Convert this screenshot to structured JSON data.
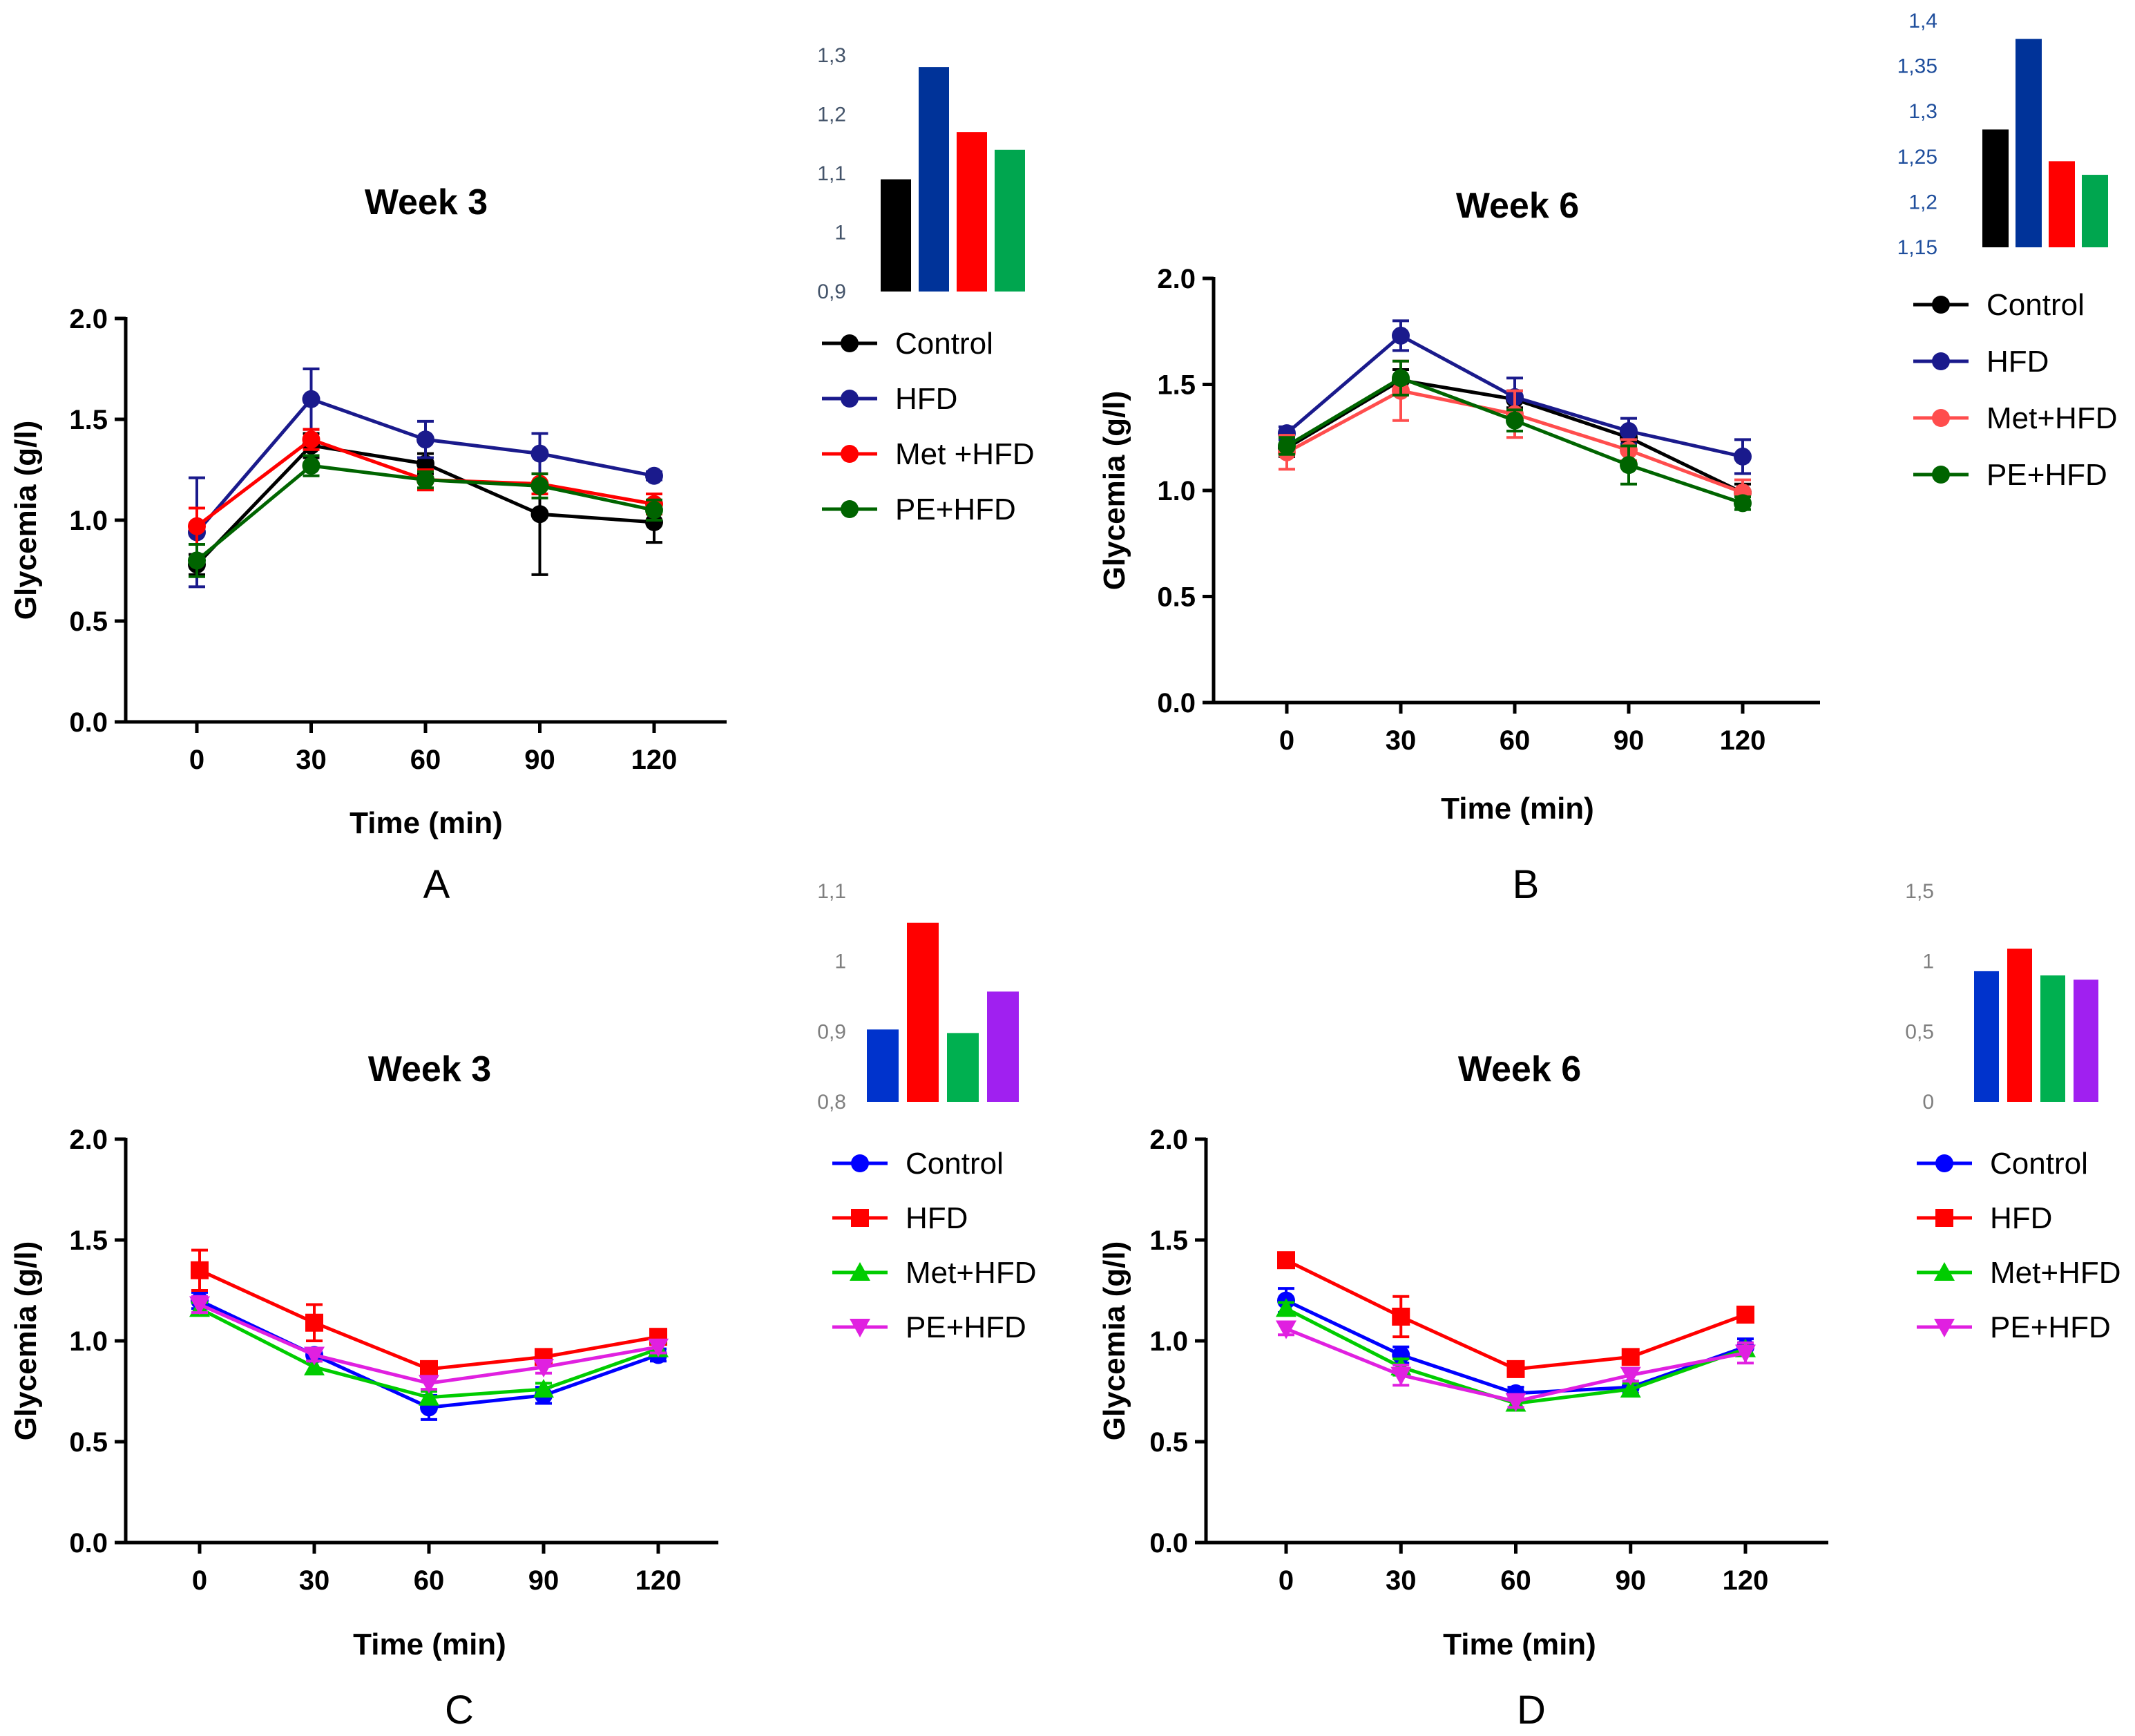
{
  "chart_data": [
    {
      "id": "A",
      "type": "line",
      "panel_label": "A",
      "title": "Week 3",
      "xlabel": "Time (min)",
      "ylabel": "Glycemia (g/l)",
      "x": [
        0,
        30,
        60,
        90,
        120
      ],
      "x_tick_labels": [
        "0",
        "30",
        "60",
        "90",
        "120"
      ],
      "ylim": [
        0,
        2
      ],
      "y_ticks": [
        0,
        0.5,
        1,
        1.5,
        2
      ],
      "y_tick_labels": [
        "0.0",
        "0.5",
        "1.0",
        "1.5",
        "2.0"
      ],
      "series": [
        {
          "name": "Control",
          "color": "#000000",
          "marker": "circle",
          "values": [
            0.78,
            1.37,
            1.28,
            1.03,
            0.99
          ],
          "errors": [
            0.05,
            0.06,
            0.05,
            0.3,
            0.1
          ]
        },
        {
          "name": "HFD",
          "color": "#1a1a8c",
          "marker": "circle",
          "values": [
            0.94,
            1.6,
            1.4,
            1.33,
            1.22
          ],
          "errors": [
            0.27,
            0.15,
            0.09,
            0.1,
            0.02
          ]
        },
        {
          "name": "Met +HFD",
          "color": "#ff0000",
          "marker": "circle",
          "values": [
            0.97,
            1.4,
            1.2,
            1.18,
            1.08
          ],
          "errors": [
            0.09,
            0.05,
            0.05,
            0.05,
            0.05
          ]
        },
        {
          "name": "PE+HFD",
          "color": "#006400",
          "marker": "circle",
          "values": [
            0.8,
            1.27,
            1.2,
            1.17,
            1.05
          ],
          "errors": [
            0.08,
            0.05,
            0.04,
            0.06,
            0.05
          ]
        }
      ],
      "inset": {
        "type": "bar",
        "tick_color": "#44546a",
        "tick_labels": [
          "0,9",
          "1",
          "1,1",
          "1,2",
          "1,3"
        ],
        "ylim": [
          0.9,
          1.3
        ],
        "values": [
          1.09,
          1.28,
          1.17,
          1.14
        ],
        "colors": [
          "#000000",
          "#003399",
          "#ff0000",
          "#00a64f"
        ]
      }
    },
    {
      "id": "B",
      "type": "line",
      "panel_label": "B",
      "title": "Week 6",
      "xlabel": "Time (min)",
      "ylabel": "Glycemia (g/l)",
      "x": [
        0,
        30,
        60,
        90,
        120
      ],
      "x_tick_labels": [
        "0",
        "30",
        "60",
        "90",
        "120"
      ],
      "ylim": [
        0,
        2
      ],
      "y_ticks": [
        0,
        0.5,
        1,
        1.5,
        2
      ],
      "y_tick_labels": [
        "0.0",
        "0.5",
        "1.0",
        "1.5",
        "2.0"
      ],
      "series": [
        {
          "name": "Control",
          "color": "#000000",
          "marker": "circle",
          "values": [
            1.2,
            1.52,
            1.43,
            1.25,
            0.99
          ],
          "errors": [
            0.04,
            0.05,
            0.04,
            0.04,
            0.04
          ]
        },
        {
          "name": "HFD",
          "color": "#1a1a8c",
          "marker": "circle",
          "values": [
            1.27,
            1.73,
            1.44,
            1.28,
            1.16
          ],
          "errors": [
            0.03,
            0.07,
            0.09,
            0.06,
            0.08
          ]
        },
        {
          "name": "Met+HFD",
          "color": "#ff4d4d",
          "marker": "circle",
          "values": [
            1.18,
            1.47,
            1.36,
            1.19,
            0.99
          ],
          "errors": [
            0.08,
            0.14,
            0.11,
            0.05,
            0.06
          ]
        },
        {
          "name": "PE+HFD",
          "color": "#006400",
          "marker": "circle",
          "values": [
            1.21,
            1.53,
            1.33,
            1.12,
            0.94
          ],
          "errors": [
            0.04,
            0.08,
            0.05,
            0.09,
            0.03
          ]
        }
      ],
      "inset": {
        "type": "bar",
        "tick_color": "#1f4e9c",
        "tick_labels": [
          "1,15",
          "1,2",
          "1,25",
          "1,3",
          "1,35",
          "1,4"
        ],
        "ylim": [
          1.15,
          1.4
        ],
        "values": [
          1.28,
          1.38,
          1.245,
          1.23
        ],
        "colors": [
          "#000000",
          "#003399",
          "#ff0000",
          "#00a64f"
        ]
      }
    },
    {
      "id": "C",
      "type": "line",
      "panel_label": "C",
      "title": "Week 3",
      "xlabel": "Time (min)",
      "ylabel": "Glycemia (g/l)",
      "x": [
        0,
        30,
        60,
        90,
        120
      ],
      "x_tick_labels": [
        "0",
        "30",
        "60",
        "90",
        "120"
      ],
      "ylim": [
        0,
        2
      ],
      "y_ticks": [
        0,
        0.5,
        1,
        1.5,
        2
      ],
      "y_tick_labels": [
        "0.0",
        "0.5",
        "1.0",
        "1.5",
        "2.0"
      ],
      "series": [
        {
          "name": "Control",
          "color": "#0000ff",
          "marker": "circle",
          "values": [
            1.2,
            0.93,
            0.67,
            0.73,
            0.93
          ],
          "errors": [
            0.04,
            0.03,
            0.06,
            0.04,
            0.03
          ]
        },
        {
          "name": "HFD",
          "color": "#ff0000",
          "marker": "square",
          "values": [
            1.35,
            1.09,
            0.86,
            0.92,
            1.02
          ],
          "errors": [
            0.1,
            0.09,
            0.03,
            0.03,
            0.02
          ]
        },
        {
          "name": "Met+HFD",
          "color": "#00cc00",
          "marker": "triangle-up",
          "values": [
            1.16,
            0.87,
            0.72,
            0.76,
            0.96
          ],
          "errors": [
            0.03,
            0.03,
            0.03,
            0.03,
            0.03
          ]
        },
        {
          "name": "PE+HFD",
          "color": "#e020e0",
          "marker": "triangle-down",
          "values": [
            1.18,
            0.93,
            0.79,
            0.87,
            0.97
          ],
          "errors": [
            0.04,
            0.03,
            0.03,
            0.03,
            0.03
          ]
        }
      ],
      "inset": {
        "type": "bar",
        "tick_color": "#7f7f7f",
        "tick_labels": [
          "0,8",
          "0,9",
          "1",
          "1,1"
        ],
        "ylim": [
          0.8,
          1.1
        ],
        "values": [
          0.903,
          1.055,
          0.898,
          0.957
        ],
        "colors": [
          "#0033cc",
          "#ff0000",
          "#00b050",
          "#a020f0"
        ]
      }
    },
    {
      "id": "D",
      "type": "line",
      "panel_label": "D",
      "title": "Week 6",
      "xlabel": "Time (min)",
      "ylabel": "Glycemia (g/l)",
      "x": [
        0,
        30,
        60,
        90,
        120
      ],
      "x_tick_labels": [
        "0",
        "30",
        "60",
        "90",
        "120"
      ],
      "ylim": [
        0,
        2
      ],
      "y_ticks": [
        0,
        0.5,
        1,
        1.5,
        2
      ],
      "y_tick_labels": [
        "0.0",
        "0.5",
        "1.0",
        "1.5",
        "2.0"
      ],
      "series": [
        {
          "name": "Control",
          "color": "#0000ff",
          "marker": "circle",
          "values": [
            1.2,
            0.93,
            0.74,
            0.77,
            0.97
          ],
          "errors": [
            0.06,
            0.04,
            0.03,
            0.03,
            0.04
          ]
        },
        {
          "name": "HFD",
          "color": "#ff0000",
          "marker": "square",
          "values": [
            1.4,
            1.12,
            0.86,
            0.92,
            1.13
          ],
          "errors": [
            0.03,
            0.1,
            0.03,
            0.03,
            0.03
          ]
        },
        {
          "name": "Met+HFD",
          "color": "#00cc00",
          "marker": "triangle-up",
          "values": [
            1.16,
            0.87,
            0.69,
            0.76,
            0.96
          ],
          "errors": [
            0.03,
            0.04,
            0.03,
            0.03,
            0.03
          ]
        },
        {
          "name": "PE+HFD",
          "color": "#e020e0",
          "marker": "triangle-down",
          "values": [
            1.06,
            0.83,
            0.7,
            0.83,
            0.94
          ],
          "errors": [
            0.03,
            0.05,
            0.03,
            0.03,
            0.05
          ]
        }
      ],
      "inset": {
        "type": "bar",
        "tick_color": "#7f7f7f",
        "tick_labels": [
          "0",
          "0,5",
          "1",
          "1,5"
        ],
        "ylim": [
          0,
          1.5
        ],
        "values": [
          0.93,
          1.09,
          0.9,
          0.87
        ],
        "colors": [
          "#0033cc",
          "#ff0000",
          "#00b050",
          "#a020f0"
        ]
      }
    }
  ]
}
